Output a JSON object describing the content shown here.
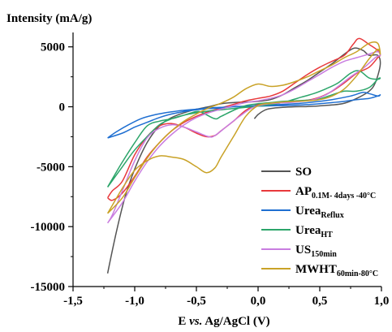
{
  "chart_data": {
    "type": "line",
    "ylabel": "Intensity (mA/g)",
    "xlabel_parts": [
      "E ",
      "vs.",
      " Ag/AgCl (V)"
    ],
    "xlim": [
      -1.5,
      1.0
    ],
    "ylim": [
      -15000,
      6200
    ],
    "xticks": [
      -1.5,
      -1.0,
      -0.5,
      0.0,
      0.5,
      1.0
    ],
    "xtick_labels": [
      "-1,5",
      "-1,0",
      "-0,5",
      "0,0",
      "0,5",
      "1,0"
    ],
    "yticks": [
      -15000,
      -10000,
      -5000,
      0,
      5000
    ],
    "ytick_labels": [
      "-15000",
      "-10000",
      "-5000",
      "0",
      "5000"
    ],
    "grid": false,
    "legend_position": "bottom-right",
    "series": [
      {
        "name": "SO",
        "name_parts": [
          {
            "text": "SO",
            "sub": false
          }
        ],
        "color": "#555555",
        "points": [
          [
            -1.22,
            -13900
          ],
          [
            -1.15,
            -10500
          ],
          [
            -1.08,
            -7600
          ],
          [
            -1.0,
            -5200
          ],
          [
            -0.9,
            -3000
          ],
          [
            -0.8,
            -1600
          ],
          [
            -0.7,
            -900
          ],
          [
            -0.6,
            -500
          ],
          [
            -0.5,
            -200
          ],
          [
            -0.4,
            0
          ],
          [
            -0.3,
            250
          ],
          [
            -0.2,
            350
          ],
          [
            -0.1,
            400
          ],
          [
            0.0,
            450
          ],
          [
            0.1,
            600
          ],
          [
            0.2,
            1000
          ],
          [
            0.3,
            1600
          ],
          [
            0.4,
            2200
          ],
          [
            0.5,
            2900
          ],
          [
            0.6,
            3600
          ],
          [
            0.7,
            4400
          ],
          [
            0.78,
            4900
          ],
          [
            0.85,
            4700
          ],
          [
            0.9,
            4300
          ],
          [
            0.97,
            4300
          ],
          [
            0.99,
            3500
          ],
          [
            0.95,
            2000
          ],
          [
            0.9,
            1300
          ],
          [
            0.8,
            700
          ],
          [
            0.7,
            300
          ],
          [
            0.6,
            150
          ],
          [
            0.5,
            80
          ],
          [
            0.4,
            20
          ],
          [
            0.3,
            0
          ],
          [
            0.2,
            -50
          ],
          [
            0.1,
            -150
          ],
          [
            0.05,
            -300
          ],
          [
            0.0,
            -650
          ],
          [
            -0.03,
            -1000
          ]
        ]
      },
      {
        "name": "AP 0.1M- 4days -40°C",
        "name_parts": [
          {
            "text": "AP",
            "sub": false
          },
          {
            "text": "0.1M- 4days -40°C",
            "sub": true
          }
        ],
        "color": "#e8393c",
        "points": [
          [
            -1.22,
            -7600
          ],
          [
            -1.18,
            -7000
          ],
          [
            -1.1,
            -6200
          ],
          [
            -1.0,
            -4000
          ],
          [
            -0.9,
            -2500
          ],
          [
            -0.8,
            -1600
          ],
          [
            -0.7,
            -1400
          ],
          [
            -0.6,
            -1700
          ],
          [
            -0.5,
            -2200
          ],
          [
            -0.42,
            -2500
          ],
          [
            -0.35,
            -2400
          ],
          [
            -0.3,
            -2000
          ],
          [
            -0.2,
            -1200
          ],
          [
            -0.1,
            -300
          ],
          [
            0.0,
            200
          ],
          [
            0.1,
            300
          ],
          [
            0.2,
            350
          ],
          [
            0.3,
            450
          ],
          [
            0.4,
            550
          ],
          [
            0.5,
            800
          ],
          [
            0.6,
            1300
          ],
          [
            0.7,
            2000
          ],
          [
            0.8,
            2800
          ],
          [
            0.9,
            3300
          ],
          [
            0.97,
            4100
          ],
          [
            0.99,
            4300
          ],
          [
            0.97,
            4700
          ],
          [
            0.9,
            5200
          ],
          [
            0.82,
            5700
          ],
          [
            0.77,
            5200
          ],
          [
            0.7,
            4300
          ],
          [
            0.6,
            3800
          ],
          [
            0.5,
            3300
          ],
          [
            0.4,
            2700
          ],
          [
            0.3,
            2000
          ],
          [
            0.2,
            1300
          ],
          [
            0.1,
            900
          ],
          [
            0.0,
            700
          ],
          [
            -0.1,
            500
          ],
          [
            -0.2,
            200
          ],
          [
            -0.3,
            -100
          ],
          [
            -0.4,
            -400
          ],
          [
            -0.5,
            -800
          ],
          [
            -0.6,
            -1300
          ],
          [
            -0.7,
            -2000
          ],
          [
            -0.8,
            -3000
          ],
          [
            -0.9,
            -4200
          ],
          [
            -1.0,
            -5800
          ],
          [
            -1.1,
            -7200
          ],
          [
            -1.18,
            -7800
          ],
          [
            -1.22,
            -7600
          ]
        ]
      },
      {
        "name": "Urea Reflux",
        "name_parts": [
          {
            "text": "Urea",
            "sub": false
          },
          {
            "text": "Reflux",
            "sub": true
          }
        ],
        "color": "#1f6fd1",
        "points": [
          [
            -1.22,
            -2600
          ],
          [
            -1.15,
            -2100
          ],
          [
            -1.05,
            -1500
          ],
          [
            -0.95,
            -1000
          ],
          [
            -0.85,
            -700
          ],
          [
            -0.75,
            -500
          ],
          [
            -0.65,
            -350
          ],
          [
            -0.5,
            -200
          ],
          [
            -0.4,
            -100
          ],
          [
            -0.3,
            -50
          ],
          [
            -0.2,
            0
          ],
          [
            -0.1,
            0
          ],
          [
            0.0,
            50
          ],
          [
            0.1,
            80
          ],
          [
            0.2,
            100
          ],
          [
            0.3,
            130
          ],
          [
            0.4,
            180
          ],
          [
            0.5,
            250
          ],
          [
            0.6,
            350
          ],
          [
            0.7,
            450
          ],
          [
            0.8,
            600
          ],
          [
            0.9,
            700
          ],
          [
            0.97,
            900
          ],
          [
            0.99,
            1000
          ],
          [
            0.97,
            900
          ],
          [
            0.9,
            1100
          ],
          [
            0.85,
            1200
          ],
          [
            0.75,
            900
          ],
          [
            0.6,
            600
          ],
          [
            0.45,
            400
          ],
          [
            0.3,
            250
          ],
          [
            0.2,
            200
          ],
          [
            0.1,
            150
          ],
          [
            0.0,
            100
          ],
          [
            -0.1,
            50
          ],
          [
            -0.2,
            0
          ],
          [
            -0.3,
            -100
          ],
          [
            -0.4,
            -150
          ],
          [
            -0.5,
            -250
          ],
          [
            -0.6,
            -400
          ],
          [
            -0.7,
            -600
          ],
          [
            -0.8,
            -900
          ],
          [
            -0.9,
            -1300
          ],
          [
            -1.0,
            -1700
          ],
          [
            -1.1,
            -2200
          ],
          [
            -1.22,
            -2600
          ]
        ]
      },
      {
        "name": "Urea HT",
        "name_parts": [
          {
            "text": "Urea",
            "sub": false
          },
          {
            "text": "HT",
            "sub": true
          }
        ],
        "color": "#2ca56a",
        "points": [
          [
            -1.22,
            -6700
          ],
          [
            -1.18,
            -6000
          ],
          [
            -1.1,
            -4600
          ],
          [
            -1.0,
            -3000
          ],
          [
            -0.9,
            -1600
          ],
          [
            -0.8,
            -1200
          ],
          [
            -0.7,
            -1000
          ],
          [
            -0.6,
            -700
          ],
          [
            -0.5,
            -400
          ],
          [
            -0.45,
            -500
          ],
          [
            -0.35,
            -1000
          ],
          [
            -0.3,
            -800
          ],
          [
            -0.2,
            -300
          ],
          [
            -0.1,
            100
          ],
          [
            0.0,
            250
          ],
          [
            0.1,
            350
          ],
          [
            0.2,
            450
          ],
          [
            0.3,
            500
          ],
          [
            0.4,
            550
          ],
          [
            0.5,
            650
          ],
          [
            0.6,
            1000
          ],
          [
            0.7,
            1300
          ],
          [
            0.8,
            1300
          ],
          [
            0.9,
            1600
          ],
          [
            0.97,
            2300
          ],
          [
            0.99,
            2400
          ],
          [
            0.97,
            2300
          ],
          [
            0.9,
            2400
          ],
          [
            0.82,
            3000
          ],
          [
            0.75,
            2800
          ],
          [
            0.65,
            2000
          ],
          [
            0.55,
            1500
          ],
          [
            0.45,
            1100
          ],
          [
            0.35,
            800
          ],
          [
            0.25,
            500
          ],
          [
            0.15,
            250
          ],
          [
            0.0,
            50
          ],
          [
            -0.1,
            -50
          ],
          [
            -0.2,
            -150
          ],
          [
            -0.3,
            -250
          ],
          [
            -0.4,
            -350
          ],
          [
            -0.5,
            -500
          ],
          [
            -0.6,
            -700
          ],
          [
            -0.7,
            -1000
          ],
          [
            -0.8,
            -1500
          ],
          [
            -0.9,
            -2500
          ],
          [
            -1.0,
            -3600
          ],
          [
            -1.1,
            -5000
          ],
          [
            -1.22,
            -6700
          ]
        ]
      },
      {
        "name": "US 150min",
        "name_parts": [
          {
            "text": "US",
            "sub": false
          },
          {
            "text": "150min",
            "sub": true
          }
        ],
        "color": "#c97de0",
        "points": [
          [
            -1.22,
            -9700
          ],
          [
            -1.18,
            -9000
          ],
          [
            -1.1,
            -7000
          ],
          [
            -1.0,
            -4500
          ],
          [
            -0.9,
            -2600
          ],
          [
            -0.8,
            -1800
          ],
          [
            -0.7,
            -1500
          ],
          [
            -0.6,
            -1700
          ],
          [
            -0.5,
            -2100
          ],
          [
            -0.4,
            -2500
          ],
          [
            -0.35,
            -2400
          ],
          [
            -0.25,
            -1600
          ],
          [
            -0.15,
            -800
          ],
          [
            -0.05,
            -100
          ],
          [
            0.05,
            200
          ],
          [
            0.15,
            300
          ],
          [
            0.25,
            350
          ],
          [
            0.35,
            450
          ],
          [
            0.45,
            600
          ],
          [
            0.55,
            1000
          ],
          [
            0.65,
            1700
          ],
          [
            0.75,
            2500
          ],
          [
            0.85,
            3200
          ],
          [
            0.95,
            4100
          ],
          [
            0.99,
            4300
          ],
          [
            0.97,
            4600
          ],
          [
            0.9,
            4400
          ],
          [
            0.8,
            4100
          ],
          [
            0.7,
            3800
          ],
          [
            0.6,
            3300
          ],
          [
            0.5,
            2700
          ],
          [
            0.4,
            2100
          ],
          [
            0.3,
            1500
          ],
          [
            0.2,
            1000
          ],
          [
            0.1,
            700
          ],
          [
            0.0,
            500
          ],
          [
            -0.1,
            350
          ],
          [
            -0.2,
            100
          ],
          [
            -0.3,
            -200
          ],
          [
            -0.4,
            -500
          ],
          [
            -0.5,
            -900
          ],
          [
            -0.6,
            -1500
          ],
          [
            -0.7,
            -2300
          ],
          [
            -0.8,
            -3300
          ],
          [
            -0.9,
            -4600
          ],
          [
            -1.0,
            -6200
          ],
          [
            -1.1,
            -8000
          ],
          [
            -1.22,
            -9700
          ]
        ]
      },
      {
        "name": "MWHT 60min-80°C",
        "name_parts": [
          {
            "text": "MWHT",
            "sub": false
          },
          {
            "text": "60min-80°C",
            "sub": true
          }
        ],
        "color": "#c9a227",
        "points": [
          [
            -1.22,
            -8900
          ],
          [
            -1.18,
            -8200
          ],
          [
            -1.1,
            -6800
          ],
          [
            -1.0,
            -5300
          ],
          [
            -0.9,
            -4500
          ],
          [
            -0.8,
            -4100
          ],
          [
            -0.7,
            -4200
          ],
          [
            -0.6,
            -4400
          ],
          [
            -0.5,
            -5000
          ],
          [
            -0.42,
            -5500
          ],
          [
            -0.35,
            -5100
          ],
          [
            -0.3,
            -4200
          ],
          [
            -0.2,
            -2500
          ],
          [
            -0.1,
            -800
          ],
          [
            0.0,
            100
          ],
          [
            0.1,
            300
          ],
          [
            0.2,
            400
          ],
          [
            0.3,
            450
          ],
          [
            0.4,
            500
          ],
          [
            0.5,
            600
          ],
          [
            0.6,
            900
          ],
          [
            0.7,
            1500
          ],
          [
            0.8,
            2600
          ],
          [
            0.9,
            4000
          ],
          [
            0.97,
            4800
          ],
          [
            0.99,
            4400
          ],
          [
            0.97,
            5300
          ],
          [
            0.9,
            5300
          ],
          [
            0.8,
            4600
          ],
          [
            0.7,
            4100
          ],
          [
            0.6,
            3500
          ],
          [
            0.5,
            3000
          ],
          [
            0.4,
            2500
          ],
          [
            0.3,
            2100
          ],
          [
            0.2,
            1800
          ],
          [
            0.1,
            1700
          ],
          [
            0.0,
            1900
          ],
          [
            -0.1,
            1500
          ],
          [
            -0.2,
            800
          ],
          [
            -0.3,
            300
          ],
          [
            -0.4,
            -100
          ],
          [
            -0.5,
            -600
          ],
          [
            -0.6,
            -1200
          ],
          [
            -0.7,
            -2000
          ],
          [
            -0.8,
            -3000
          ],
          [
            -0.9,
            -4300
          ],
          [
            -1.0,
            -5900
          ],
          [
            -1.1,
            -7600
          ],
          [
            -1.22,
            -8900
          ]
        ]
      }
    ]
  }
}
